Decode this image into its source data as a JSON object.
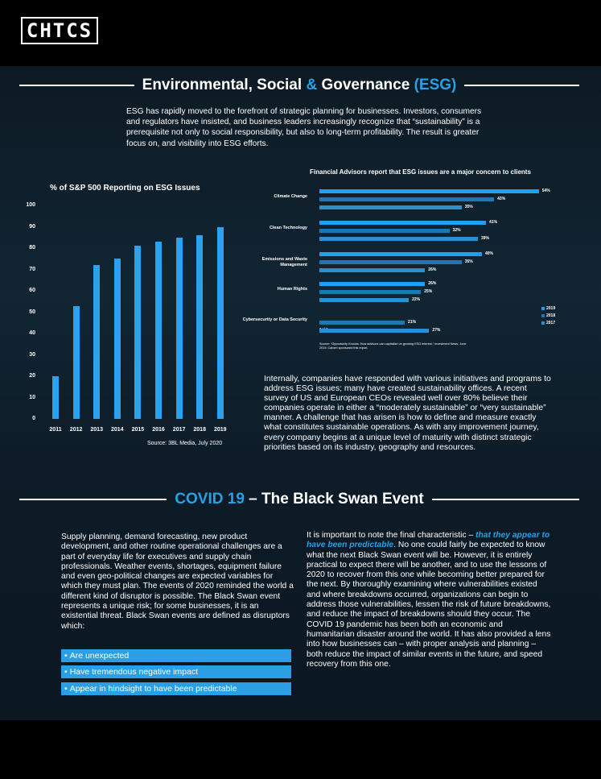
{
  "brand": {
    "logo_text": "CHTCS"
  },
  "esg": {
    "title_a": "Environmental, Social ",
    "title_amp": "&",
    "title_b": " Governance ",
    "title_abbr": "(ESG)",
    "intro": "ESG has rapidly moved to the forefront of strategic planning for businesses. Investors, consumers and regulators have insisted, and business leaders increasingly recognize that “sustainability” is a prerequisite not only to social responsibility, but also to long-term profitability. The result is greater focus on, and visibility into ESG efforts.",
    "body": "Internally, companies have responded with various initiatives and programs to address ESG issues; many have created sustainability offices. A recent survey of US and European CEOs revealed well over 80% believe their companies operate in either a “moderately sustainable” or “very sustainable” manner. A challenge that has arisen is how to define and measure exactly what constitutes sustainable operations. As with any improvement journey, every company begins at a unique level of maturity with distinct strategic priorities based on its industry, geography and resources."
  },
  "chart_data": [
    {
      "type": "bar",
      "title": "% of S&P 500 Reporting on ESG Issues",
      "categories": [
        "2011",
        "2012",
        "2013",
        "2014",
        "2015",
        "2016",
        "2017",
        "2018",
        "2019"
      ],
      "values": [
        20,
        53,
        72,
        75,
        81,
        83,
        85,
        86,
        90
      ],
      "yticks": [
        "0",
        "10",
        "20",
        "30",
        "40",
        "50",
        "60",
        "70",
        "80",
        "90",
        "100"
      ],
      "ylim": [
        0,
        100
      ],
      "source": "Source: 3BL Media, July 2020",
      "color": "#2aa2ee"
    },
    {
      "type": "bar",
      "orientation": "horizontal",
      "title": "Financial Advisors report that ESG issues are a major concern to clients",
      "categories": [
        "Climate Change",
        "Clean Technology",
        "Emissions and Waste Management",
        "Human Rights",
        "Cybersecurity or Data Security"
      ],
      "series": [
        {
          "name": "2019",
          "values": [
            54,
            41,
            40,
            26,
            null
          ],
          "labels": [
            "54%",
            "41%",
            "40%",
            "26%",
            "N/A"
          ],
          "color": "#1fa0f0"
        },
        {
          "name": "2018",
          "values": [
            43,
            32,
            35,
            25,
            21
          ],
          "labels": [
            "43%",
            "32%",
            "35%",
            "25%",
            "21%"
          ],
          "color": "#1b78b2"
        },
        {
          "name": "2017",
          "values": [
            35,
            39,
            26,
            22,
            27
          ],
          "labels": [
            "35%",
            "39%",
            "26%",
            "22%",
            "27%"
          ],
          "color": "#2b8fd0"
        }
      ],
      "xlim": [
        0,
        60
      ],
      "source": "Source: “Opportunity Knocks: How advisors can capitalize on growing ESG interest,” Investment News, June 2019. Calvert sponsored this report."
    }
  ],
  "covid": {
    "title_a": "COVID 19",
    "title_b": " – The Black Swan Event",
    "left_para": "Supply planning, demand forecasting, new product development, and other routine operational challenges are a part of everyday life for executives and supply chain professionals. Weather events, shortages, equipment failure and even geo-political changes are expected variables for which they must plan. The events of 2020 reminded the world a different kind of disruptor is possible. The Black Swan event represents a unique risk; for some businesses, it is an existential threat. Black Swan events are defined as disruptors which:",
    "bullets": [
      "Are unexpected",
      "Have tremendous negative impact",
      "Appear in hindsight to have been predictable"
    ],
    "right_pre": "It is important to note the final characteristic – ",
    "right_em": "that they appear to have been predictable",
    "right_post": ". No one could fairly be expected to know what the next Black Swan event will be. However, it is entirely practical to expect there will be another, and to use the lessons of 2020 to recover from this one while becoming better prepared for the next. By thoroughly examining where vulnerabilities existed and where breakdowns occurred, organizations can begin to address those vulnerabilities, lessen the risk of future breakdowns, and reduce the impact of breakdowns should they occur. The COVID 19 pandemic has been both an economic and humanitarian disaster around the world. It has also provided a lens into how businesses can – with proper analysis and planning – both reduce the impact of similar events in the future, and speed recovery from this one."
  }
}
